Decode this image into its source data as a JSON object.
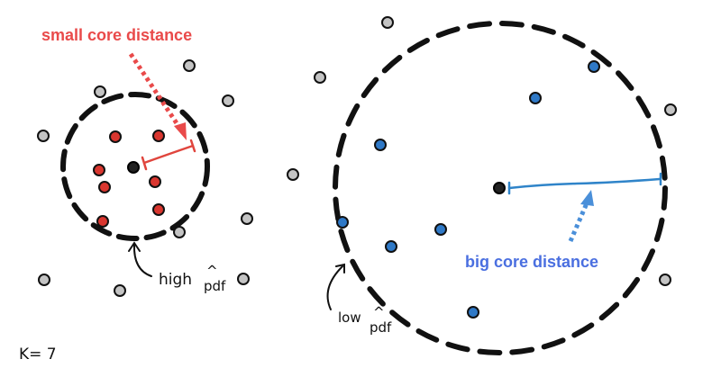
{
  "labels": {
    "small_core": "small core distance",
    "big_core": "big core distance",
    "high": "high",
    "low": "low",
    "pdf": "pdf",
    "hat": "^",
    "k": "K= 7"
  },
  "colors": {
    "red": "#e94a4a",
    "blue": "#4a6fe0",
    "red_point": "#d9362f",
    "blue_point": "#2f79c7",
    "gray_point": "#c4c4c4",
    "core_point": "#222222"
  }
}
